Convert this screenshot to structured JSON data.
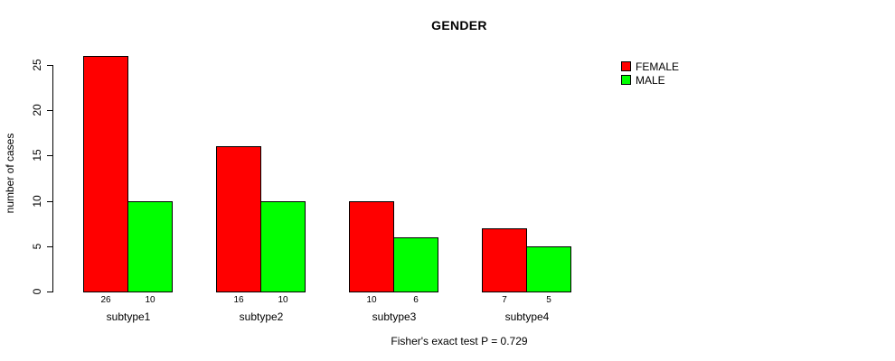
{
  "chart_data": {
    "type": "bar",
    "title": "GENDER",
    "ylabel": "number of cases",
    "xlabel": "",
    "categories": [
      "subtype1",
      "subtype2",
      "subtype3",
      "subtype4"
    ],
    "series": [
      {
        "name": "FEMALE",
        "color": "#ff0000",
        "values": [
          26,
          16,
          10,
          7
        ]
      },
      {
        "name": "MALE",
        "color": "#00ff00",
        "values": [
          10,
          10,
          6,
          5
        ]
      }
    ],
    "yticks": [
      0,
      5,
      10,
      15,
      20,
      25
    ],
    "ylim": [
      0,
      26
    ],
    "grid": false,
    "legend_position": "top-right",
    "values_shown_below_bars": true,
    "footnote": "Fisher's exact test P = 0.729"
  }
}
